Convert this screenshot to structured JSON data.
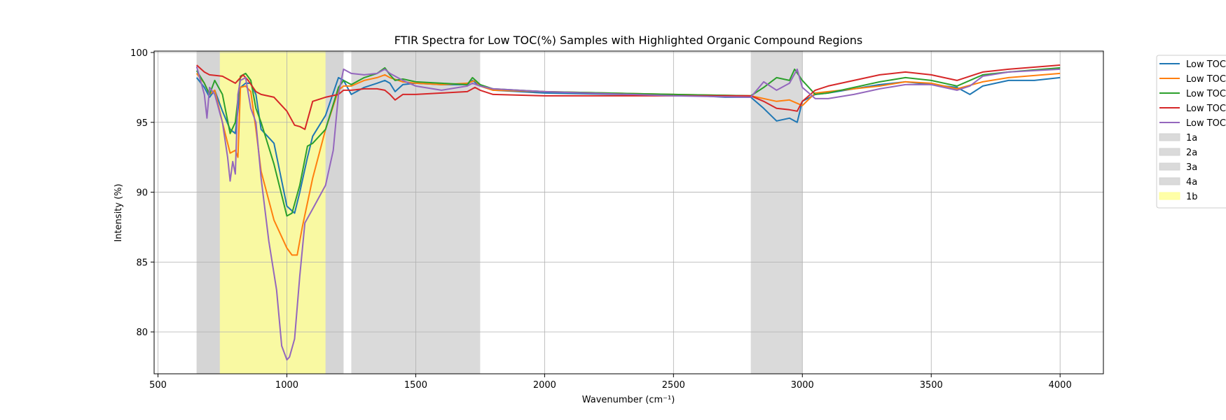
{
  "chart_data": {
    "type": "line",
    "title": "FTIR Spectra for Low TOC(%) Samples with Highlighted Organic Compound Regions",
    "xlabel": "Wavenumber (cm⁻¹)",
    "ylabel": "Intensity (%)",
    "xlim": [
      485,
      4168
    ],
    "ylim": [
      77,
      100.1
    ],
    "xticks": [
      500,
      1000,
      1500,
      2000,
      2500,
      3000,
      3500,
      4000
    ],
    "yticks": [
      80,
      85,
      90,
      95,
      100
    ],
    "grid": true,
    "legend_position": "outside-right",
    "regions": [
      {
        "name": "1a",
        "x0": 650,
        "x1": 1220,
        "color": "#d3d3d3"
      },
      {
        "name": "2a",
        "x0": 1250,
        "x1": 1750,
        "color": "#d3d3d3"
      },
      {
        "name": "3a",
        "x0": 2800,
        "x1": 3000,
        "color": "#d3d3d3"
      },
      {
        "name": "4a",
        "x0": 650,
        "x1": 1220,
        "color": "#d3d3d3"
      },
      {
        "name": "1b",
        "x0": 740,
        "x1": 1150,
        "color": "#ffff99"
      }
    ],
    "series": [
      {
        "name": "Low TOC",
        "color": "#1f77b4",
        "x": [
          650,
          680,
          700,
          720,
          750,
          780,
          800,
          820,
          840,
          860,
          880,
          900,
          950,
          1000,
          1030,
          1050,
          1080,
          1100,
          1150,
          1200,
          1220,
          1250,
          1300,
          1350,
          1380,
          1400,
          1420,
          1450,
          1500,
          1600,
          1700,
          1720,
          1750,
          1800,
          2000,
          2300,
          2500,
          2700,
          2800,
          2850,
          2900,
          2950,
          2980,
          3000,
          3050,
          3100,
          3300,
          3400,
          3500,
          3600,
          3650,
          3700,
          3800,
          3900,
          4000
        ],
        "y": [
          98.2,
          97.5,
          96.8,
          97.3,
          95.8,
          94.5,
          94.2,
          97.5,
          97.8,
          97.8,
          97.0,
          94.5,
          93.5,
          89.0,
          88.5,
          90.0,
          92.5,
          94.0,
          95.5,
          98.2,
          98.0,
          97.0,
          97.5,
          97.8,
          98.0,
          97.8,
          97.2,
          97.7,
          97.8,
          97.7,
          97.7,
          98.0,
          97.6,
          97.3,
          97.1,
          97.0,
          97.0,
          96.8,
          96.8,
          96.0,
          95.1,
          95.3,
          95.0,
          96.5,
          97.0,
          97.1,
          97.7,
          97.9,
          97.7,
          97.5,
          97.0,
          97.6,
          98.0,
          98.0,
          98.2
        ]
      },
      {
        "name": "Low TOC",
        "color": "#ff7f0e",
        "x": [
          650,
          680,
          700,
          720,
          750,
          780,
          800,
          810,
          820,
          840,
          860,
          880,
          900,
          950,
          1000,
          1020,
          1040,
          1060,
          1100,
          1150,
          1200,
          1220,
          1250,
          1300,
          1350,
          1380,
          1400,
          1450,
          1500,
          1600,
          1700,
          1730,
          1750,
          1800,
          2000,
          2500,
          2800,
          2900,
          2950,
          3000,
          3050,
          3300,
          3400,
          3500,
          3600,
          3700,
          3800,
          4000
        ],
        "y": [
          98.5,
          97.8,
          97.0,
          97.3,
          95.0,
          92.8,
          93.0,
          92.5,
          97.5,
          97.6,
          97.2,
          94.5,
          91.5,
          88.0,
          86.0,
          85.5,
          85.5,
          87.5,
          91.0,
          94.5,
          97.3,
          97.6,
          97.6,
          98.0,
          98.2,
          98.4,
          98.2,
          97.9,
          97.8,
          97.7,
          97.8,
          98.0,
          97.6,
          97.3,
          97.2,
          97.0,
          96.9,
          96.5,
          96.6,
          96.2,
          97.1,
          97.6,
          97.9,
          97.8,
          97.4,
          97.9,
          98.2,
          98.5
        ]
      },
      {
        "name": "Low TOC",
        "color": "#2ca02c",
        "x": [
          650,
          680,
          700,
          720,
          750,
          780,
          800,
          820,
          840,
          860,
          880,
          900,
          950,
          1000,
          1020,
          1050,
          1080,
          1100,
          1150,
          1200,
          1220,
          1250,
          1300,
          1350,
          1380,
          1400,
          1420,
          1450,
          1500,
          1600,
          1700,
          1720,
          1750,
          1800,
          2000,
          2500,
          2800,
          2850,
          2900,
          2950,
          2970,
          3000,
          3050,
          3100,
          3300,
          3400,
          3500,
          3600,
          3650,
          3700,
          3800,
          4000
        ],
        "y": [
          98.7,
          97.8,
          97.0,
          98.0,
          97.0,
          94.2,
          95.0,
          98.3,
          98.5,
          98.0,
          96.0,
          95.0,
          92.0,
          88.3,
          88.5,
          90.5,
          93.3,
          93.5,
          94.5,
          97.5,
          98.0,
          97.7,
          98.2,
          98.5,
          98.9,
          98.4,
          98.0,
          98.1,
          97.9,
          97.8,
          97.7,
          98.2,
          97.7,
          97.4,
          97.2,
          97.0,
          96.9,
          97.5,
          98.2,
          98.0,
          98.8,
          98.0,
          97.0,
          97.1,
          97.9,
          98.2,
          98.0,
          97.6,
          98.0,
          98.4,
          98.6,
          98.9
        ]
      },
      {
        "name": "Low TOC",
        "color": "#d62728",
        "x": [
          650,
          680,
          700,
          750,
          800,
          830,
          850,
          880,
          900,
          950,
          1000,
          1030,
          1050,
          1070,
          1100,
          1150,
          1200,
          1220,
          1250,
          1300,
          1350,
          1380,
          1400,
          1420,
          1450,
          1500,
          1600,
          1700,
          1730,
          1750,
          1800,
          2000,
          2500,
          2800,
          2850,
          2900,
          2950,
          2980,
          3000,
          3050,
          3100,
          3200,
          3300,
          3400,
          3500,
          3600,
          3700,
          3800,
          4000
        ],
        "y": [
          99.1,
          98.6,
          98.4,
          98.3,
          97.8,
          98.4,
          98.0,
          97.2,
          97.0,
          96.8,
          95.8,
          94.8,
          94.7,
          94.5,
          96.5,
          96.8,
          97.0,
          97.3,
          97.3,
          97.4,
          97.4,
          97.3,
          97.0,
          96.6,
          97.0,
          97.0,
          97.1,
          97.2,
          97.5,
          97.3,
          97.0,
          96.9,
          96.9,
          96.9,
          96.5,
          96.0,
          95.9,
          95.8,
          96.5,
          97.3,
          97.6,
          98.0,
          98.4,
          98.6,
          98.4,
          98.0,
          98.6,
          98.8,
          99.1
        ]
      },
      {
        "name": "Low TOC",
        "color": "#9467bd",
        "x": [
          650,
          680,
          690,
          700,
          720,
          750,
          770,
          780,
          790,
          800,
          810,
          820,
          840,
          860,
          880,
          900,
          930,
          960,
          980,
          1000,
          1010,
          1030,
          1050,
          1070,
          1100,
          1150,
          1180,
          1200,
          1220,
          1250,
          1300,
          1350,
          1380,
          1400,
          1450,
          1500,
          1600,
          1700,
          1720,
          1750,
          1800,
          2000,
          2500,
          2800,
          2850,
          2900,
          2950,
          2980,
          3000,
          3050,
          3100,
          3200,
          3300,
          3400,
          3500,
          3600,
          3650,
          3700,
          3800,
          4000
        ],
        "y": [
          99.0,
          97.0,
          95.3,
          97.5,
          97.0,
          95.0,
          92.5,
          90.8,
          92.2,
          91.3,
          97.0,
          98.0,
          98.2,
          96.0,
          95.0,
          91.0,
          86.5,
          83.0,
          79.0,
          78.0,
          78.2,
          79.5,
          84.0,
          87.8,
          88.8,
          90.5,
          93.0,
          97.0,
          98.8,
          98.5,
          98.4,
          98.5,
          98.8,
          98.5,
          98.0,
          97.6,
          97.3,
          97.6,
          97.8,
          97.6,
          97.4,
          97.2,
          96.9,
          96.8,
          97.9,
          97.3,
          97.8,
          98.8,
          97.5,
          96.7,
          96.7,
          97.0,
          97.4,
          97.7,
          97.7,
          97.3,
          97.6,
          98.3,
          98.6,
          98.8
        ]
      }
    ]
  }
}
